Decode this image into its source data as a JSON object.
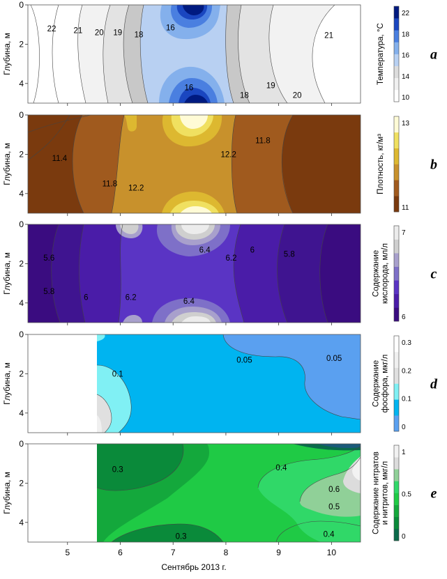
{
  "chart_data": {
    "type": "contour",
    "xlabel": "Сентябрь 2013 г.",
    "x_ticks": [
      "5",
      "6",
      "7",
      "8",
      "9",
      "10"
    ],
    "xlim": [
      4.25,
      10.55
    ],
    "panels": [
      {
        "id": "a",
        "letter": "a",
        "ylabel": "Глубина, м",
        "y_ticks": [
          "0",
          "2",
          "4"
        ],
        "ylim": [
          0,
          5
        ],
        "colorbar_title": [
          "Температура, °C"
        ],
        "colorbar_ticks": [
          "22",
          "18",
          "16",
          "14",
          "10"
        ],
        "colors": [
          "#ffffff",
          "#f0f0f0",
          "#dcdcdc",
          "#b8d0f2",
          "#84b0ec",
          "#4a7fe0",
          "#1a46c0",
          "#001a80"
        ],
        "contour_labels": [
          {
            "text": "22",
            "x": 4.7,
            "y": 1.2
          },
          {
            "text": "21",
            "x": 5.2,
            "y": 1.3
          },
          {
            "text": "20",
            "x": 5.6,
            "y": 1.4
          },
          {
            "text": "19",
            "x": 5.95,
            "y": 1.4
          },
          {
            "text": "18",
            "x": 6.35,
            "y": 1.5
          },
          {
            "text": "16",
            "x": 6.95,
            "y": 1.15
          },
          {
            "text": "16",
            "x": 7.3,
            "y": 4.2
          },
          {
            "text": "18",
            "x": 8.35,
            "y": 4.6
          },
          {
            "text": "19",
            "x": 8.85,
            "y": 4.1
          },
          {
            "text": "20",
            "x": 9.35,
            "y": 4.6
          },
          {
            "text": "21",
            "x": 9.95,
            "y": 1.55
          }
        ]
      },
      {
        "id": "b",
        "letter": "b",
        "ylabel": "Глубина, м",
        "y_ticks": [
          "0",
          "2",
          "4"
        ],
        "ylim": [
          0,
          5
        ],
        "colorbar_title": [
          "Плотность, кг/м³"
        ],
        "colorbar_ticks": [
          "13",
          "11"
        ],
        "colors": [
          "#7a3a0e",
          "#a05a1e",
          "#c8912c",
          "#ddb830",
          "#f0e060",
          "#fffbd6"
        ],
        "contour_labels": [
          {
            "text": "11.4",
            "x": 4.85,
            "y": 2.2
          },
          {
            "text": "11.8",
            "x": 5.8,
            "y": 3.5
          },
          {
            "text": "12.2",
            "x": 6.3,
            "y": 3.7
          },
          {
            "text": "12.2",
            "x": 8.05,
            "y": 2.0
          },
          {
            "text": "11.8",
            "x": 8.7,
            "y": 1.3
          }
        ]
      },
      {
        "id": "c",
        "letter": "c",
        "ylabel": "Глубина, м",
        "y_ticks": [
          "0",
          "2",
          "4"
        ],
        "ylim": [
          0,
          5
        ],
        "colorbar_title": [
          "Содержание",
          "кислорода, мл/л"
        ],
        "colorbar_ticks": [
          "7",
          "6"
        ],
        "colors": [
          "#3a0c80",
          "#4a1ca8",
          "#5a34c4",
          "#7e70c8",
          "#a8a0cc",
          "#cfcfcf",
          "#ececec"
        ],
        "contour_labels": [
          {
            "text": "5.6",
            "x": 4.65,
            "y": 1.7
          },
          {
            "text": "5.8",
            "x": 4.65,
            "y": 3.4
          },
          {
            "text": "6",
            "x": 5.35,
            "y": 3.7
          },
          {
            "text": "6.2",
            "x": 6.2,
            "y": 3.7
          },
          {
            "text": "6.4",
            "x": 7.3,
            "y": 3.9
          },
          {
            "text": "6.4",
            "x": 7.6,
            "y": 1.3
          },
          {
            "text": "6.2",
            "x": 8.1,
            "y": 1.7
          },
          {
            "text": "6",
            "x": 8.5,
            "y": 1.3
          },
          {
            "text": "5.8",
            "x": 9.2,
            "y": 1.5
          }
        ]
      },
      {
        "id": "d",
        "letter": "d",
        "ylabel": "Глубина, м",
        "y_ticks": [
          "0",
          "2",
          "4"
        ],
        "ylim": [
          0,
          5
        ],
        "colorbar_title": [
          "Содержание",
          "фосфора, мкг/л"
        ],
        "colorbar_ticks": [
          "0.3",
          "0.2",
          "0.1",
          "0"
        ],
        "colors": [
          "#5aa0f0",
          "#00b4f0",
          "#80f0f4",
          "#e0e0e0",
          "#f0f0f0",
          "#ffffff"
        ],
        "contour_labels": [
          {
            "text": "0.05",
            "x": 8.35,
            "y": 1.3
          },
          {
            "text": "0.05",
            "x": 10.05,
            "y": 1.2
          },
          {
            "text": "0.1",
            "x": 5.95,
            "y": 2.0
          }
        ]
      },
      {
        "id": "e",
        "letter": "e",
        "ylabel": "Глубина, м",
        "y_ticks": [
          "0",
          "2",
          "4"
        ],
        "ylim": [
          0,
          5
        ],
        "colorbar_title": [
          "Содержание нитратов",
          "и нитритов, мкг/л"
        ],
        "colorbar_ticks": [
          "1",
          "0.5",
          "0"
        ],
        "colors": [
          "#0a6a4a",
          "#0a8a3a",
          "#14a83c",
          "#1fca45",
          "#30d868",
          "#90d098",
          "#dcdcdc",
          "#f2f2f2"
        ],
        "contour_labels": [
          {
            "text": "0.3",
            "x": 5.95,
            "y": 1.3
          },
          {
            "text": "0.4",
            "x": 9.05,
            "y": 1.2
          },
          {
            "text": "0.6",
            "x": 10.05,
            "y": 2.3
          },
          {
            "text": "0.5",
            "x": 10.05,
            "y": 3.2
          },
          {
            "text": "0.4",
            "x": 9.95,
            "y": 4.6
          },
          {
            "text": "0.3",
            "x": 7.15,
            "y": 4.7
          }
        ]
      }
    ]
  }
}
